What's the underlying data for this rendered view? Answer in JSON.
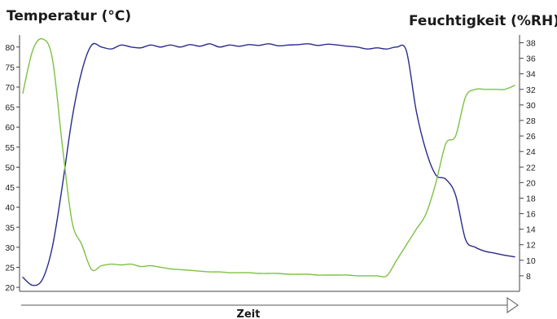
{
  "chart_data": {
    "type": "line",
    "title_left": "Temperatur (°C)",
    "title_right": "Feuchtigkeit (%RH)",
    "xlabel": "Zeit",
    "x": [
      0,
      2,
      4,
      6,
      8,
      10,
      12,
      14,
      16,
      18,
      20,
      22,
      24,
      26,
      28,
      30,
      32,
      34,
      36,
      38,
      40,
      42,
      44,
      46,
      48,
      50,
      52,
      54,
      56,
      58,
      60,
      62,
      64,
      66,
      68,
      70,
      72,
      74,
      76,
      78,
      80,
      82,
      84,
      86,
      88,
      90,
      92,
      94,
      96,
      98,
      100
    ],
    "y_left_ticks": [
      20,
      25,
      30,
      35,
      40,
      45,
      50,
      55,
      60,
      65,
      70,
      75,
      80
    ],
    "y_left_range": [
      19,
      83
    ],
    "y_right_ticks": [
      8,
      10,
      12,
      14,
      16,
      18,
      20,
      22,
      24,
      26,
      28,
      30,
      32,
      34,
      36,
      38
    ],
    "y_right_range": [
      6,
      39
    ],
    "series": [
      {
        "axis": "left",
        "color": "#2a2a8c",
        "values": [
          22.5,
          20.5,
          22,
          30,
          45,
          62,
          74,
          80.5,
          80,
          79.5,
          80.5,
          80,
          79.8,
          80.5,
          80,
          80.5,
          80,
          80.6,
          80.2,
          80.8,
          80,
          80.5,
          80.2,
          80.6,
          80.4,
          80.8,
          80.3,
          80.5,
          80.6,
          80.8,
          80.4,
          80.7,
          80.5,
          80.2,
          80,
          79.5,
          79.8,
          79.5,
          80,
          79,
          64,
          54,
          48,
          47,
          43,
          32,
          30,
          29,
          28.5,
          28,
          27.6
        ]
      },
      {
        "axis": "right",
        "color": "#7cc242",
        "values": [
          31.5,
          37,
          38.5,
          36,
          25,
          15,
          12,
          8.8,
          9.3,
          9.5,
          9.4,
          9.5,
          9.2,
          9.3,
          9.1,
          8.9,
          8.8,
          8.7,
          8.6,
          8.5,
          8.5,
          8.4,
          8.4,
          8.4,
          8.3,
          8.3,
          8.3,
          8.2,
          8.2,
          8.2,
          8.1,
          8.1,
          8.1,
          8.1,
          8.0,
          8.0,
          8.0,
          8.0,
          10,
          12,
          14,
          16,
          20,
          25,
          26,
          31,
          32,
          32,
          32,
          32,
          32.5
        ]
      }
    ]
  }
}
